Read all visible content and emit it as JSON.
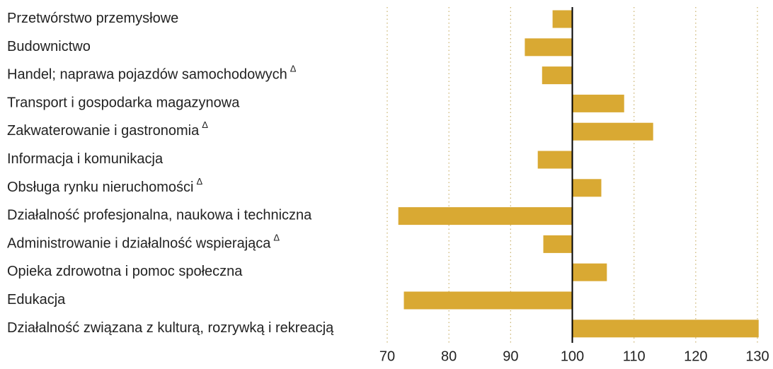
{
  "chart_data": {
    "type": "bar",
    "orientation": "horizontal",
    "categories": [
      "Przetwórstwo przemysłowe",
      "Budownictwo",
      "Handel; naprawa pojazdów samochodowych",
      "Transport i gospodarka magazynowa",
      "Zakwaterowanie i gastronomia",
      "Informacja i komunikacja",
      "Obsługa rynku nieruchomości",
      "Działalność profesjonalna, naukowa i techniczna",
      "Administrowanie i działalność wspierająca",
      "Opieka zdrowotna i pomoc społeczna",
      "Edukacja",
      "Działalność związana z kulturą, rozrywką i rekreacją"
    ],
    "values": [
      96.8,
      92.3,
      95.1,
      108.4,
      113.1,
      94.4,
      104.7,
      71.8,
      95.3,
      105.6,
      72.7,
      130.2
    ],
    "note_symbol": "Δ",
    "noted": [
      false,
      false,
      true,
      false,
      true,
      false,
      true,
      false,
      true,
      false,
      false,
      false
    ],
    "color": "#d9a933",
    "baseline": 100,
    "xlim": [
      70,
      130
    ],
    "xticks": [
      70,
      80,
      90,
      100,
      110,
      120,
      130
    ],
    "grid": true
  }
}
